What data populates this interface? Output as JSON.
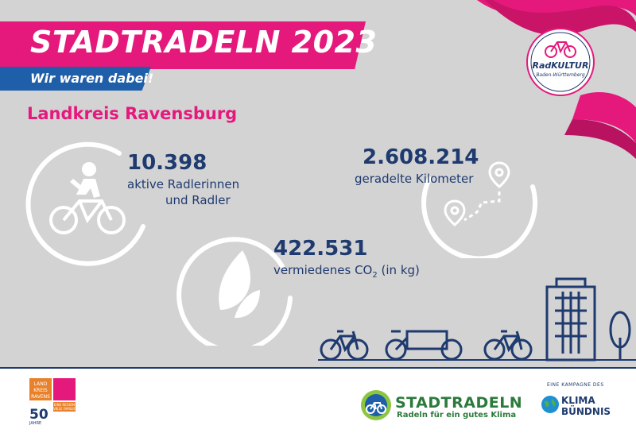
{
  "header": {
    "title": "STADTRADELN 2023",
    "subtitle": "Wir waren dabei!"
  },
  "region": "Landkreis Ravensburg",
  "stats": {
    "riders": {
      "value": "10.398",
      "label_line1": "aktive Radlerinnen",
      "label_line2": "und Radler"
    },
    "kilometers": {
      "value": "2.608.214",
      "label": "geradelte Kilometer"
    },
    "co2": {
      "value": "422.531",
      "label_prefix": "vermiedenes CO",
      "label_sub": "2",
      "label_suffix": " (in kg)"
    }
  },
  "radkultur": {
    "name": "RadKULTUR",
    "sub": "Baden-Württemberg"
  },
  "footer": {
    "landkreis": {
      "cells": [
        "LAND KREIS RAVENS BURG",
        "",
        "",
        "EINE REGION VIELE FAMILIE"
      ],
      "number": "50",
      "sub": "JAHRE"
    },
    "stadtradeln": {
      "name": "STADTRADELN",
      "tagline": "Radeln für ein gutes Klima"
    },
    "klima": {
      "kicker": "EINE KAMPAGNE DES",
      "line1": "KLIMA",
      "line2": "BÜNDNIS"
    }
  },
  "colors": {
    "background": "#d3d3d4",
    "pink": "#e5197c",
    "blue": "#1f5fa9",
    "navy": "#1e3a6e",
    "green": "#2b7a3c",
    "white": "#ffffff"
  },
  "icons": [
    "cyclist-icon",
    "leaf-icon",
    "route-pin-icon",
    "bicycle-icon",
    "cargo-bike-icon",
    "building-icon",
    "tree-icon",
    "globe-icon"
  ]
}
